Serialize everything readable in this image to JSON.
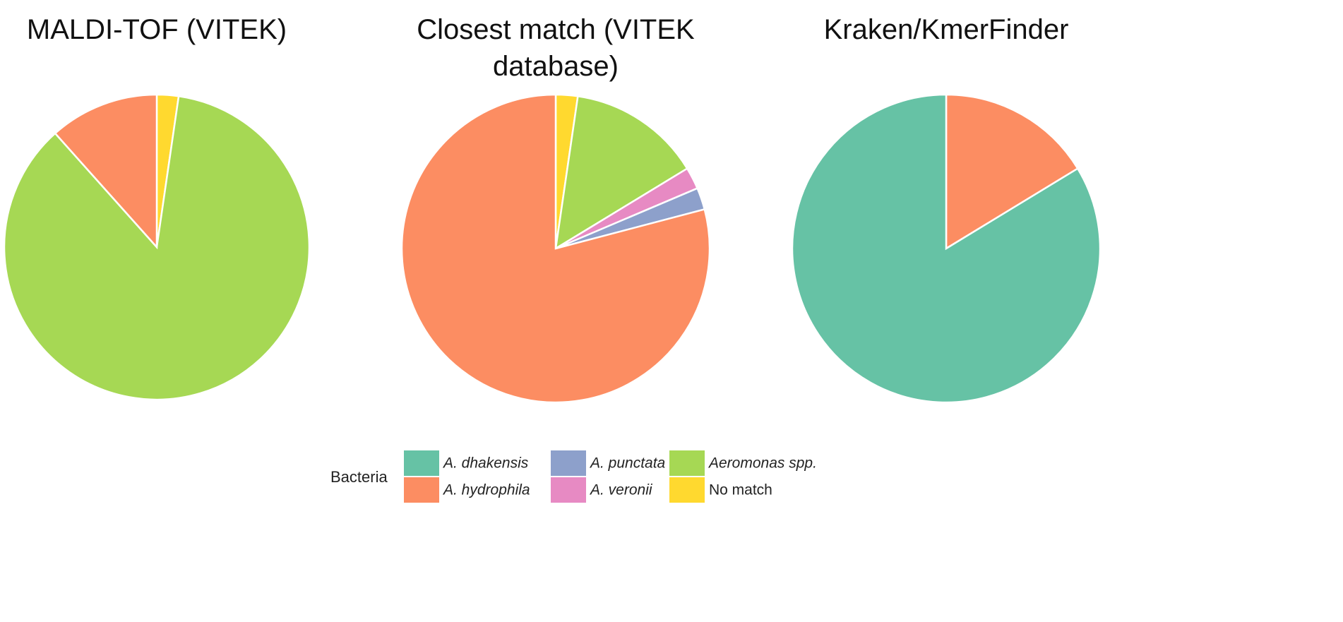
{
  "chart_data": [
    {
      "type": "pie",
      "title": "MALDI-TOF (VITEK)",
      "categories": [
        "No match",
        "Aeromonas spp.",
        "A. hydrophila"
      ],
      "values": [
        2.3,
        86.1,
        11.6
      ],
      "colors": [
        "#ffd92f",
        "#a6d854",
        "#fc8d62"
      ]
    },
    {
      "type": "pie",
      "title": "Closest match (VITEK database)",
      "categories": [
        "No match",
        "Aeromonas spp.",
        "A. veronii",
        "A. punctata",
        "A. hydrophila"
      ],
      "values": [
        2.3,
        14.0,
        2.3,
        2.3,
        79.1
      ],
      "colors": [
        "#ffd92f",
        "#a6d854",
        "#e78ac3",
        "#8da0cb",
        "#fc8d62"
      ]
    },
    {
      "type": "pie",
      "title": "Kraken/KmerFinder",
      "categories": [
        "A. hydrophila",
        "A. dhakensis"
      ],
      "values": [
        16.3,
        83.7
      ],
      "colors": [
        "#fc8d62",
        "#66c2a5"
      ]
    }
  ],
  "legend": {
    "title": "Bacteria",
    "items": [
      {
        "name": "A. dhakensis",
        "color": "#66c2a5",
        "italic": true
      },
      {
        "name": "A. hydrophila",
        "color": "#fc8d62",
        "italic": true
      },
      {
        "name": "A. punctata",
        "color": "#8da0cb",
        "italic": true
      },
      {
        "name": "A. veronii",
        "color": "#e78ac3",
        "italic": true
      },
      {
        "name": "Aeromonas spp.",
        "color": "#a6d854",
        "italic": true
      },
      {
        "name": "No match",
        "color": "#ffd92f",
        "italic": false
      }
    ]
  }
}
